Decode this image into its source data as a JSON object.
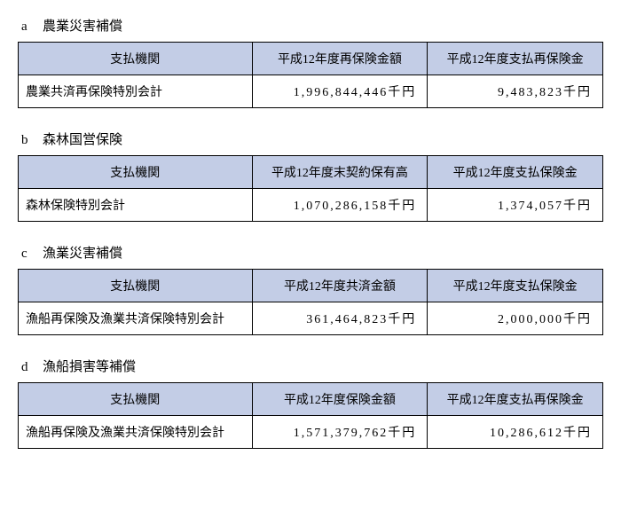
{
  "sections": [
    {
      "letter": "a",
      "title": "農業災害補償",
      "headers": [
        "支払機関",
        "平成12年度再保険金額",
        "平成12年度支払再保険金"
      ],
      "row": {
        "institution": "農業共済再保険特別会計",
        "amount1": "1,996,844,446千円",
        "amount2": "9,483,823千円"
      }
    },
    {
      "letter": "b",
      "title": "森林国営保険",
      "headers": [
        "支払機関",
        "平成12年度末契約保有高",
        "平成12年度支払保険金"
      ],
      "row": {
        "institution": "森林保険特別会計",
        "amount1": "1,070,286,158千円",
        "amount2": "1,374,057千円"
      }
    },
    {
      "letter": "c",
      "title": "漁業災害補償",
      "headers": [
        "支払機関",
        "平成12年度共済金額",
        "平成12年度支払保険金"
      ],
      "row": {
        "institution": "漁船再保険及漁業共済保険特別会計",
        "amount1": "361,464,823千円",
        "amount2": "2,000,000千円"
      }
    },
    {
      "letter": "d",
      "title": "漁船損害等補償",
      "headers": [
        "支払機関",
        "平成12年度保険金額",
        "平成12年度支払再保険金"
      ],
      "row": {
        "institution": "漁船再保険及漁業共済保険特別会計",
        "amount1": "1,571,379,762千円",
        "amount2": "10,286,612千円"
      }
    }
  ],
  "colors": {
    "header_bg": "#c3cde6",
    "border": "#000000",
    "background": "#ffffff",
    "text": "#000000"
  }
}
